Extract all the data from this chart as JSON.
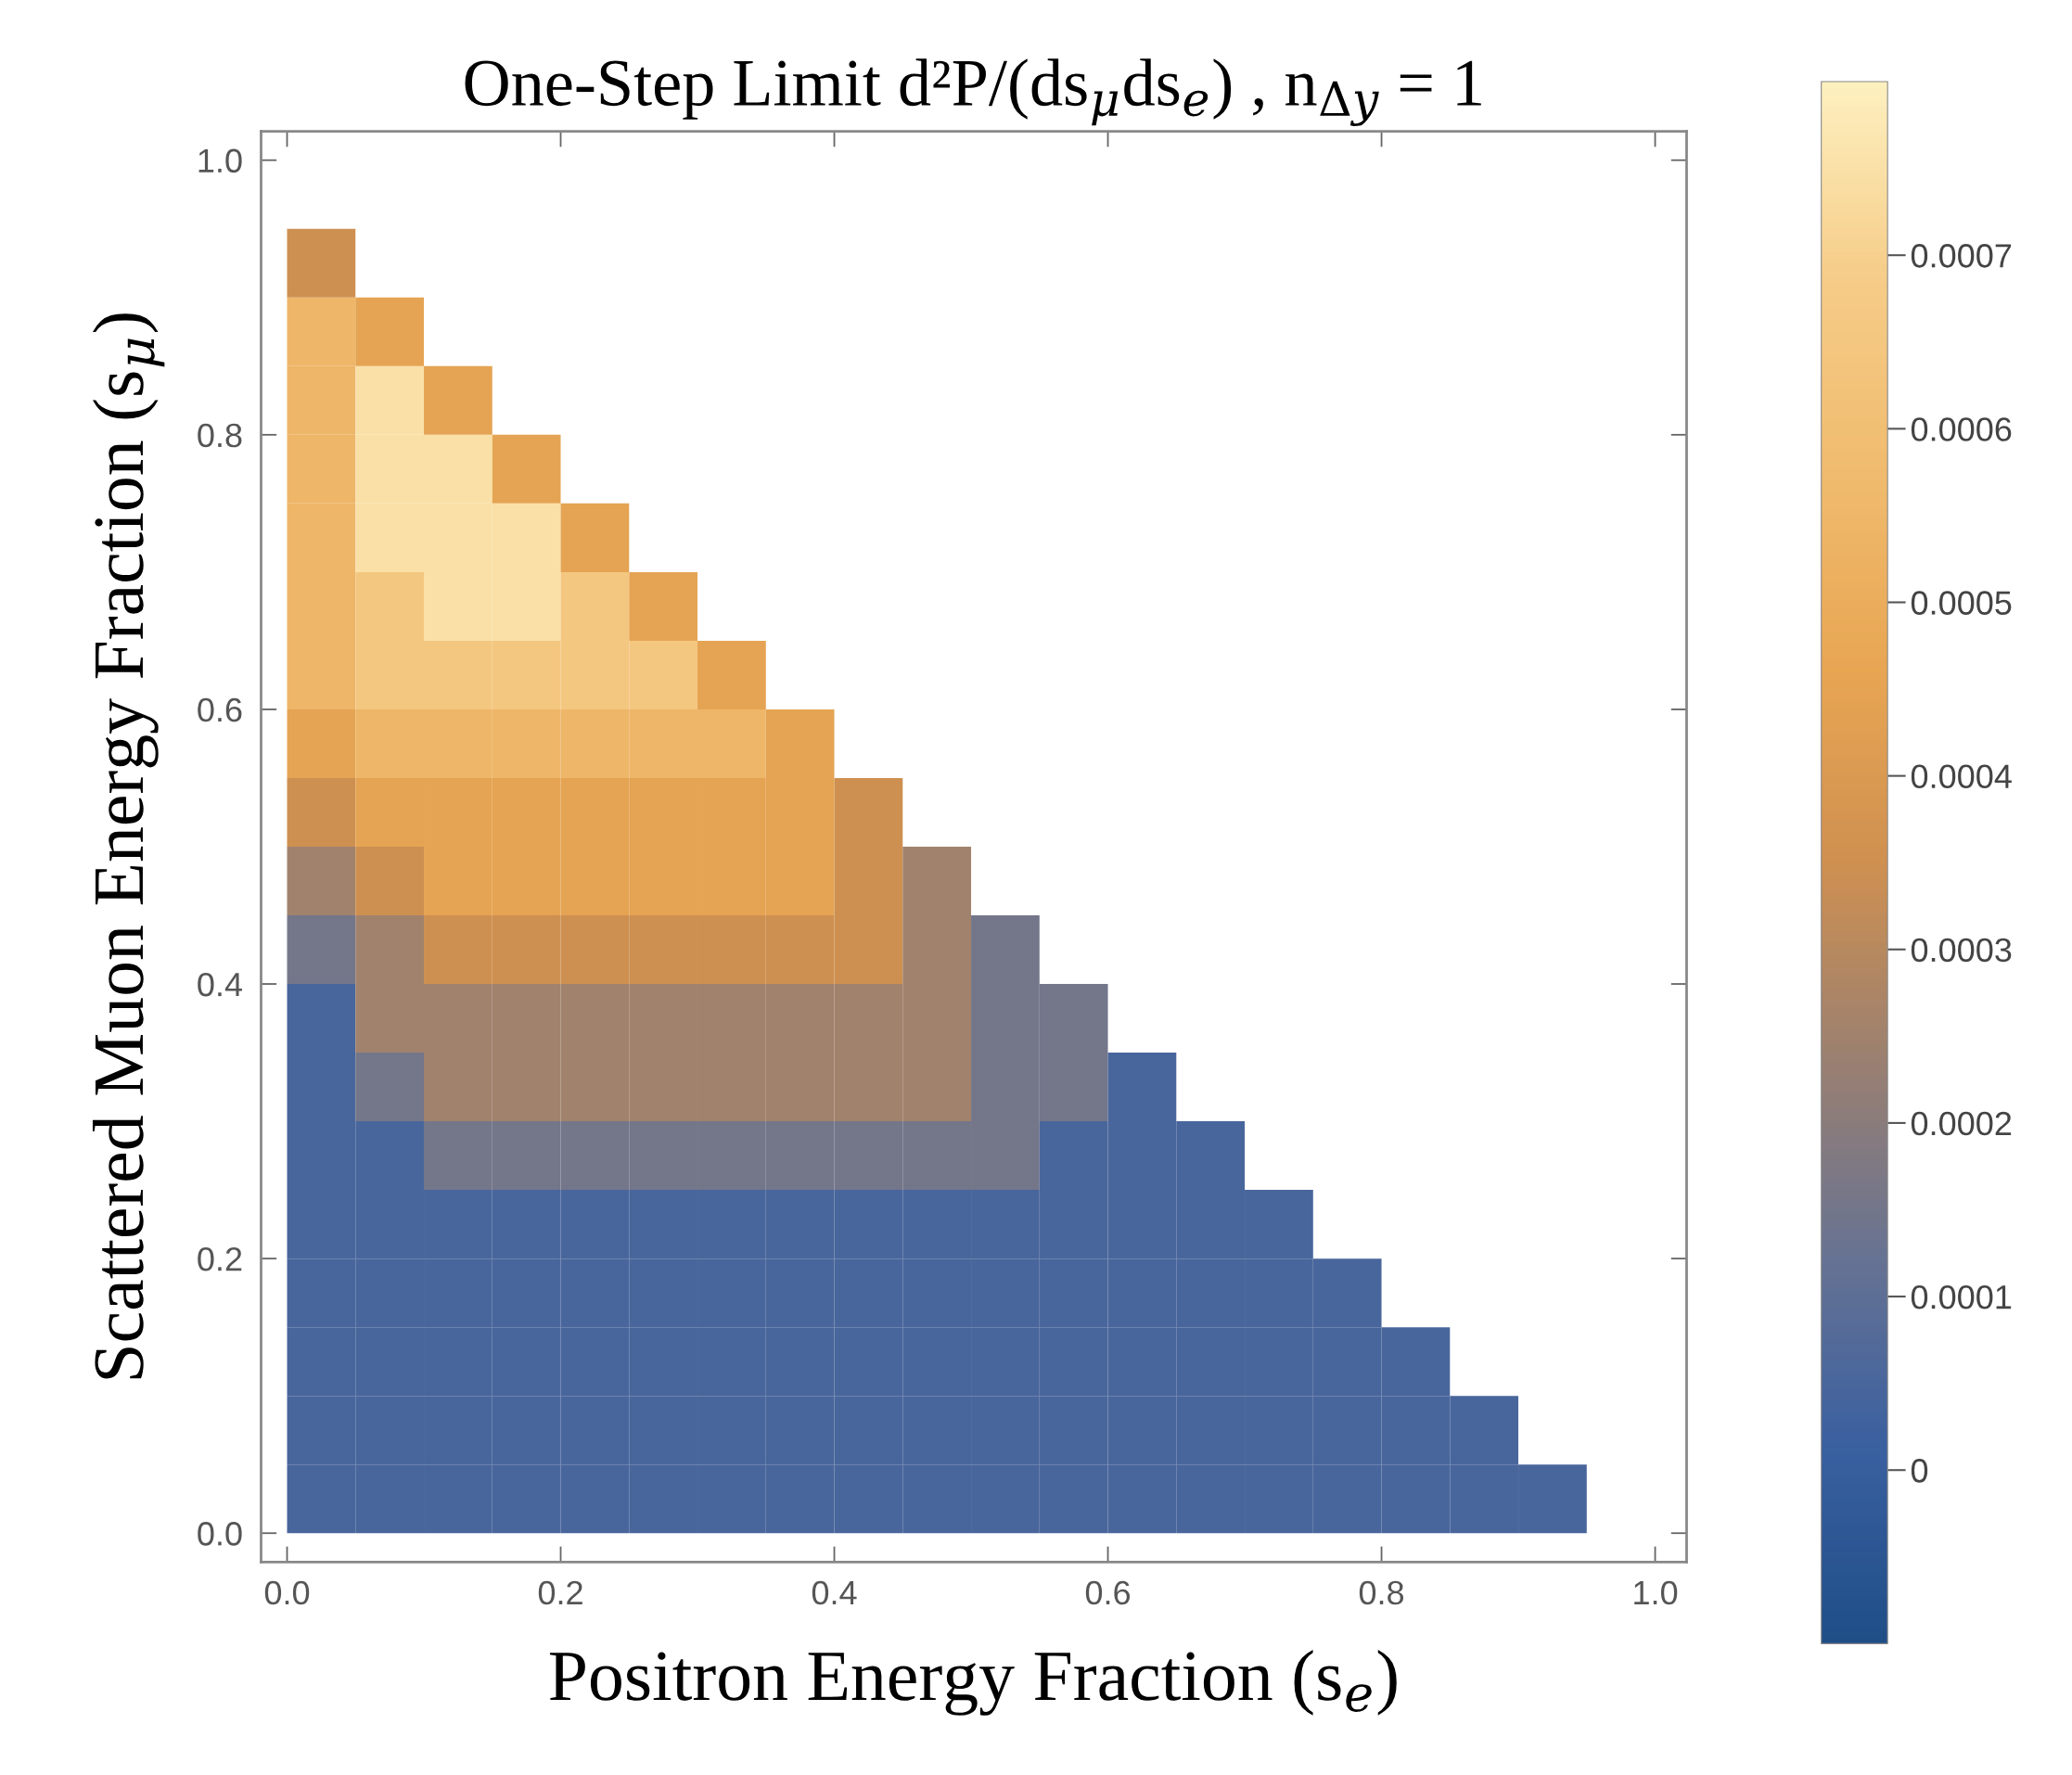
{
  "chart_data": {
    "type": "heatmap",
    "title": "One-Step Limit d²P/(ds$_{μ}$ds$_{e}$) , n$_{Δy}$ = 1",
    "xlabel": "Positron Energy Fraction (s$_{e}$)",
    "ylabel": "Scattered Muon Energy Fraction (s$_{μ}$)",
    "x": [
      0.025,
      0.075,
      0.125,
      0.175,
      0.225,
      0.275,
      0.325,
      0.375,
      0.425,
      0.475,
      0.525,
      0.575,
      0.625,
      0.675,
      0.725,
      0.775,
      0.825,
      0.875,
      0.925
    ],
    "y": [
      0.025,
      0.075,
      0.125,
      0.175,
      0.225,
      0.275,
      0.325,
      0.375,
      0.425,
      0.475,
      0.525,
      0.575,
      0.625,
      0.675,
      0.725,
      0.775,
      0.825,
      0.875,
      0.925
    ],
    "cells": [
      [
        5e-05,
        5e-05,
        5e-05,
        5e-05,
        5e-05,
        5e-05,
        5e-05,
        5e-05,
        5e-05,
        5e-05,
        5e-05,
        5e-05,
        5e-05,
        5e-05,
        5e-05,
        5e-05,
        5e-05,
        5e-05,
        5e-05
      ],
      [
        5e-05,
        5e-05,
        5e-05,
        5e-05,
        5e-05,
        5e-05,
        5e-05,
        5e-05,
        5e-05,
        5e-05,
        5e-05,
        5e-05,
        5e-05,
        5e-05,
        5e-05,
        5e-05,
        5e-05,
        5e-05,
        null
      ],
      [
        5e-05,
        5e-05,
        5e-05,
        5e-05,
        5e-05,
        5e-05,
        5e-05,
        5e-05,
        5e-05,
        5e-05,
        5e-05,
        5e-05,
        5e-05,
        5e-05,
        5e-05,
        5e-05,
        5e-05,
        null,
        null
      ],
      [
        5e-05,
        5e-05,
        5e-05,
        5e-05,
        5e-05,
        5e-05,
        5e-05,
        5e-05,
        5e-05,
        5e-05,
        5e-05,
        5e-05,
        5e-05,
        5e-05,
        5e-05,
        5e-05,
        null,
        null,
        null
      ],
      [
        5e-05,
        5e-05,
        5e-05,
        5e-05,
        5e-05,
        5e-05,
        5e-05,
        5e-05,
        5e-05,
        5e-05,
        5e-05,
        5e-05,
        5e-05,
        5e-05,
        5e-05,
        null,
        null,
        null,
        null
      ],
      [
        5e-05,
        5e-05,
        0.00015,
        0.00015,
        0.00015,
        0.00015,
        0.00015,
        0.00015,
        0.00015,
        0.00015,
        0.00015,
        5e-05,
        5e-05,
        5e-05,
        null,
        null,
        null,
        null,
        null
      ],
      [
        5e-05,
        0.00015,
        0.00025,
        0.00025,
        0.00025,
        0.00025,
        0.00025,
        0.00025,
        0.00025,
        0.00025,
        0.00015,
        0.00015,
        5e-05,
        null,
        null,
        null,
        null,
        null,
        null
      ],
      [
        5e-05,
        0.00025,
        0.00025,
        0.00025,
        0.00025,
        0.00025,
        0.00025,
        0.00025,
        0.00025,
        0.00025,
        0.00015,
        0.00015,
        null,
        null,
        null,
        null,
        null,
        null,
        null
      ],
      [
        0.00015,
        0.00025,
        0.00035,
        0.00035,
        0.00035,
        0.00035,
        0.00035,
        0.00035,
        0.00035,
        0.00025,
        0.00015,
        null,
        null,
        null,
        null,
        null,
        null,
        null,
        null
      ],
      [
        0.00025,
        0.00035,
        0.00045,
        0.00045,
        0.00045,
        0.00045,
        0.00045,
        0.00045,
        0.00035,
        0.00025,
        null,
        null,
        null,
        null,
        null,
        null,
        null,
        null,
        null
      ],
      [
        0.00035,
        0.00045,
        0.00045,
        0.00045,
        0.00045,
        0.00045,
        0.00045,
        0.00045,
        0.00035,
        null,
        null,
        null,
        null,
        null,
        null,
        null,
        null,
        null,
        null
      ],
      [
        0.00045,
        0.00055,
        0.00055,
        0.00055,
        0.00055,
        0.00055,
        0.00055,
        0.00045,
        null,
        null,
        null,
        null,
        null,
        null,
        null,
        null,
        null,
        null,
        null
      ],
      [
        0.00055,
        0.00065,
        0.00065,
        0.00065,
        0.00065,
        0.00065,
        0.00045,
        null,
        null,
        null,
        null,
        null,
        null,
        null,
        null,
        null,
        null,
        null,
        null
      ],
      [
        0.00055,
        0.00065,
        0.00075,
        0.00075,
        0.00065,
        0.00045,
        null,
        null,
        null,
        null,
        null,
        null,
        null,
        null,
        null,
        null,
        null,
        null,
        null
      ],
      [
        0.00055,
        0.00075,
        0.00075,
        0.00075,
        0.00045,
        null,
        null,
        null,
        null,
        null,
        null,
        null,
        null,
        null,
        null,
        null,
        null,
        null,
        null
      ],
      [
        0.00055,
        0.00075,
        0.00075,
        0.00045,
        null,
        null,
        null,
        null,
        null,
        null,
        null,
        null,
        null,
        null,
        null,
        null,
        null,
        null,
        null
      ],
      [
        0.00055,
        0.00075,
        0.00045,
        null,
        null,
        null,
        null,
        null,
        null,
        null,
        null,
        null,
        null,
        null,
        null,
        null,
        null,
        null,
        null
      ],
      [
        0.00055,
        0.00045,
        null,
        null,
        null,
        null,
        null,
        null,
        null,
        null,
        null,
        null,
        null,
        null,
        null,
        null,
        null,
        null,
        null
      ],
      [
        0.00035,
        null,
        null,
        null,
        null,
        null,
        null,
        null,
        null,
        null,
        null,
        null,
        null,
        null,
        null,
        null,
        null,
        null,
        null
      ]
    ],
    "colors": [
      "#1f4e87",
      "#3a60a0",
      "#687392",
      "#9b8070",
      "#cf9050",
      "#e8a653",
      "#f0bb6e",
      "#f6cc88",
      "#fdf0bf"
    ],
    "clim": [
      -0.0001,
      0.0008
    ],
    "cticks": [
      0,
      0.0001,
      0.0002,
      0.0003,
      0.0004,
      0.0005,
      0.0006,
      0.0007
    ],
    "xlim": [
      -0.019,
      1.023
    ],
    "ylim": [
      -0.021,
      1.021
    ],
    "xticks": [
      {
        "value": 0,
        "label": "0.0"
      },
      {
        "value": 0.2,
        "label": "0.2"
      },
      {
        "value": 0.4,
        "label": "0.4"
      },
      {
        "value": 0.6,
        "label": "0.6"
      },
      {
        "value": 0.8,
        "label": "0.8"
      },
      {
        "value": 1,
        "label": "1.0"
      }
    ],
    "yticks": [
      {
        "value": 0,
        "label": "0.0"
      },
      {
        "value": 0.2,
        "label": "0.2"
      },
      {
        "value": 0.4,
        "label": "0.4"
      },
      {
        "value": 0.6,
        "label": "0.6"
      },
      {
        "value": 0.8,
        "label": "0.8"
      },
      {
        "value": 1,
        "label": "1.0"
      }
    ]
  }
}
